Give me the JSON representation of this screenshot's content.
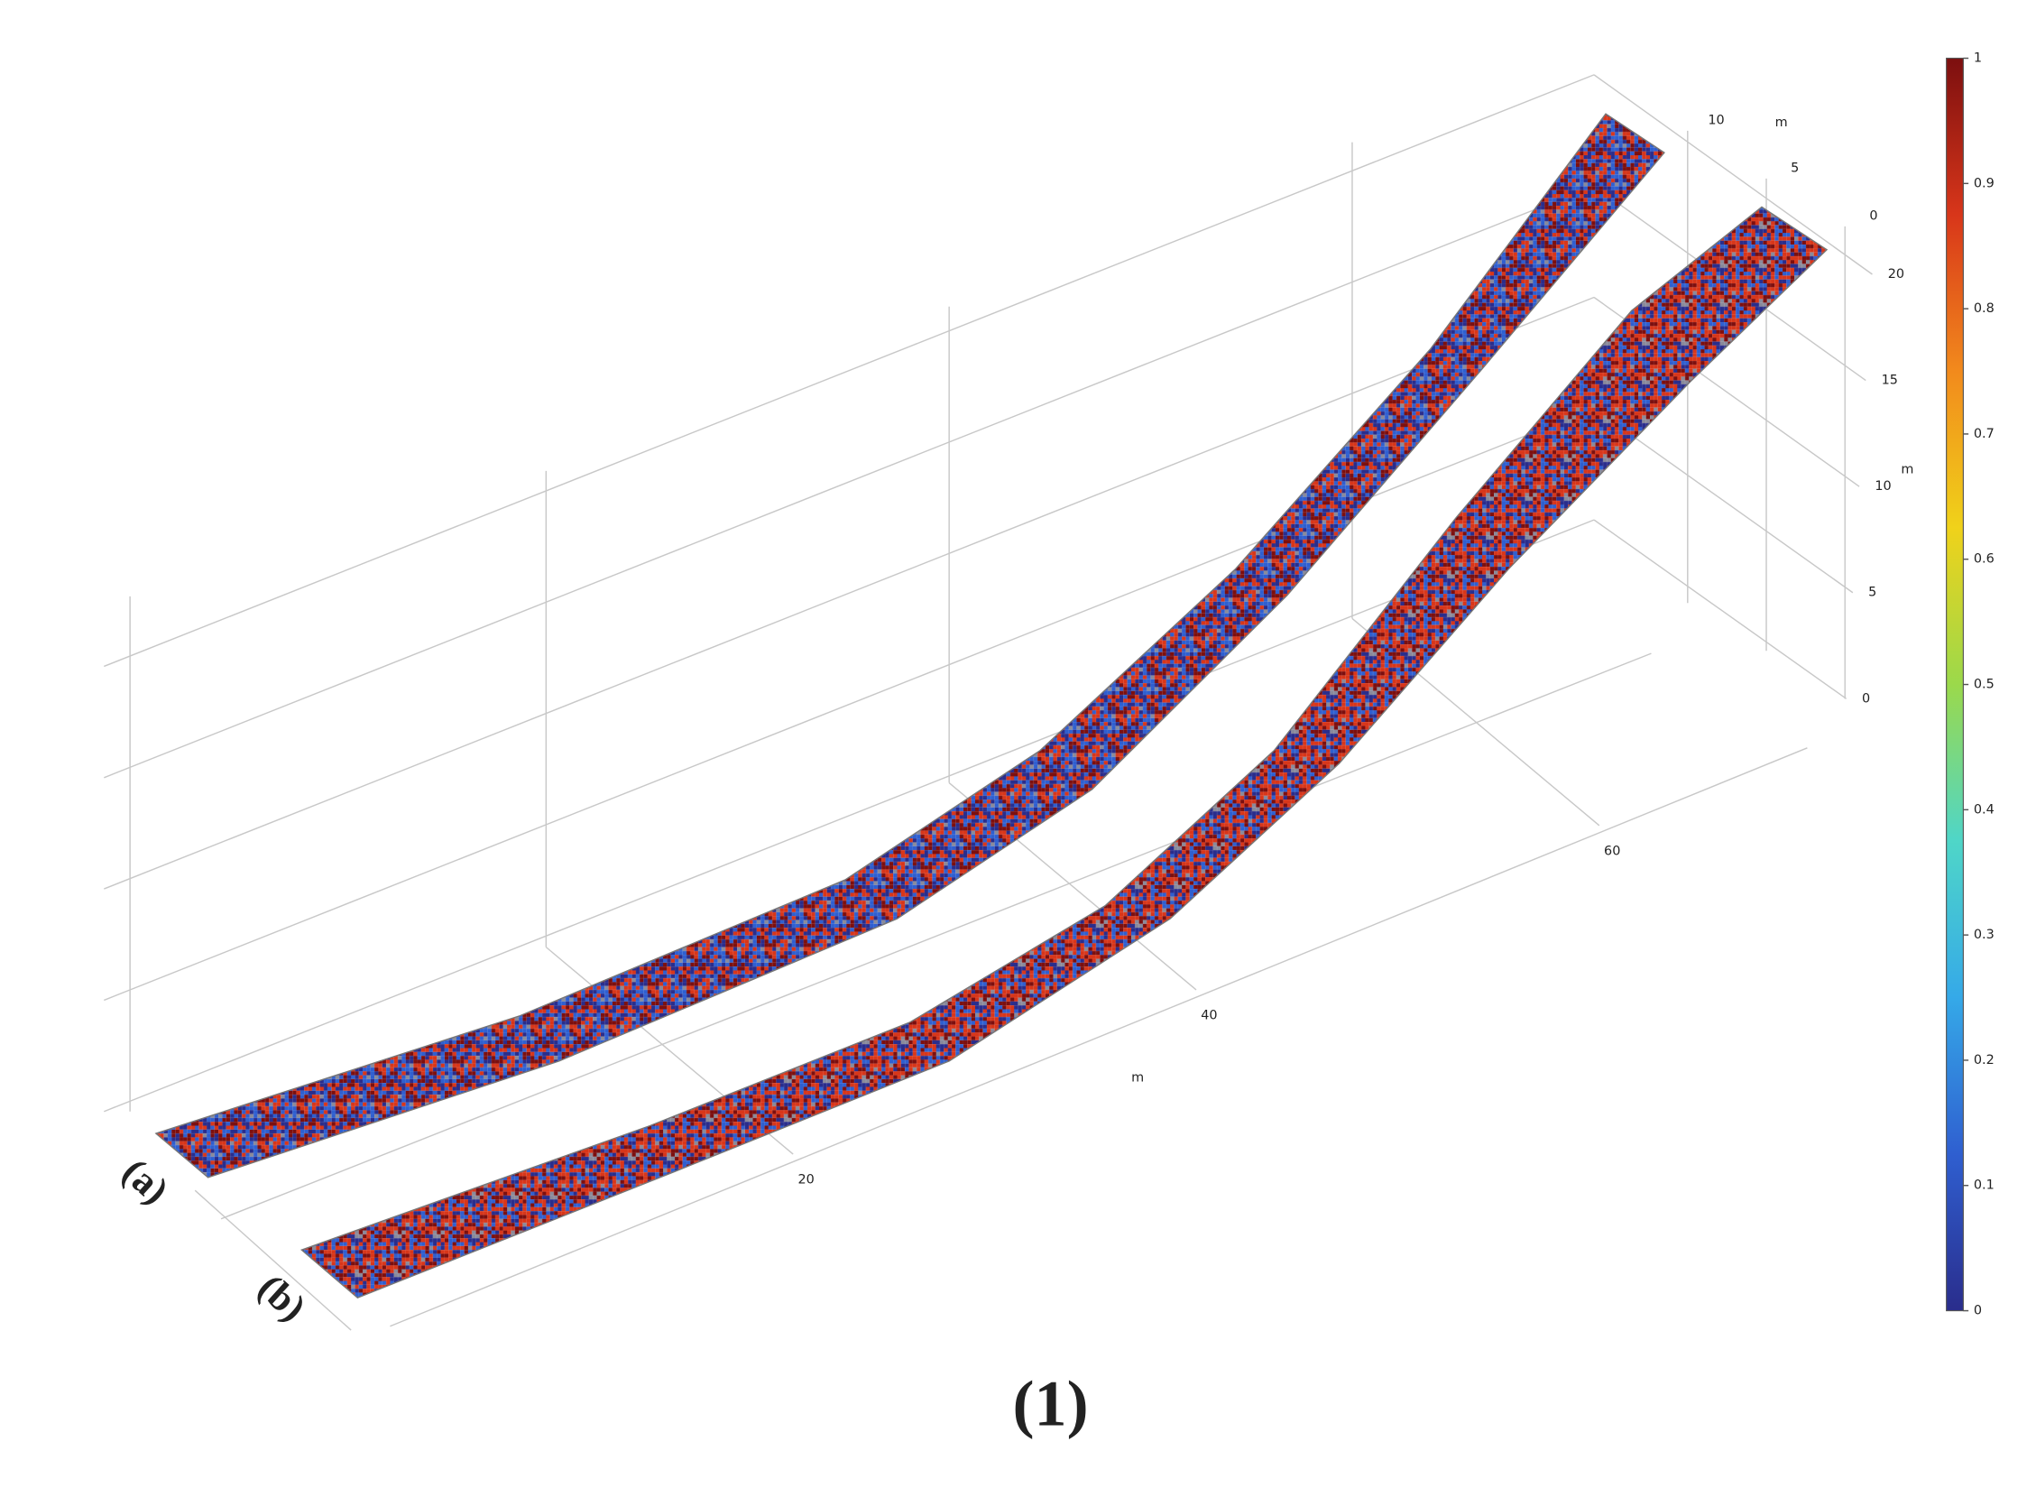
{
  "chart_data": {
    "type": "surface3d",
    "caption": "(1)",
    "panels": [
      "(a)",
      "(b)"
    ],
    "xlabel": "m",
    "ylabel": "m",
    "zlabel": "m",
    "xticks": [
      20,
      40,
      60
    ],
    "yticks": [
      0,
      5,
      10
    ],
    "zticks": [
      0,
      5,
      10,
      15,
      20
    ],
    "grid": true,
    "colorbar": {
      "clim": [
        0,
        1
      ],
      "ticks": [
        0,
        0.1,
        0.2,
        0.3,
        0.4,
        0.5,
        0.6,
        0.7,
        0.8,
        0.9,
        1
      ],
      "colors": [
        "#2a2d8c",
        "#2f5fd0",
        "#35a9e8",
        "#4fd6c8",
        "#9bd94b",
        "#f0d21a",
        "#f28a1c",
        "#d8361a",
        "#7c0f0f"
      ]
    }
  }
}
